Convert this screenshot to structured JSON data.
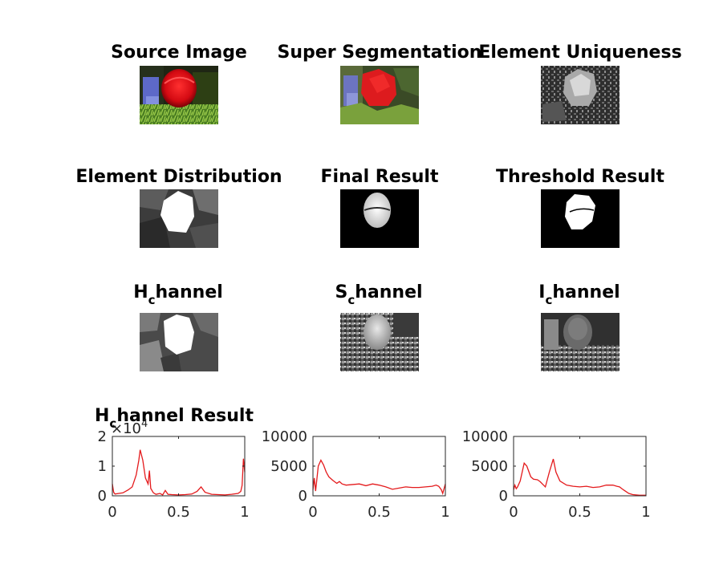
{
  "panels": [
    {
      "title": "Source Image"
    },
    {
      "title": "Super Segmentation"
    },
    {
      "title": "Element Uniqueness"
    },
    {
      "title": "Element Distribution"
    },
    {
      "title": "Final Result"
    },
    {
      "title": "Threshold Result"
    },
    {
      "title_main": "H",
      "title_sub": "c",
      "title_rest": "hannel"
    },
    {
      "title_main": "S",
      "title_sub": "c",
      "title_rest": "hannel"
    },
    {
      "title_main": "I",
      "title_sub": "c",
      "title_rest": "hannel"
    }
  ],
  "chart_data": [
    {
      "type": "line",
      "title": "H_channel Result",
      "title_main": "H",
      "title_sub": "c",
      "title_rest": "hannel Result",
      "exponent_label": "×10",
      "exponent_value": "4",
      "xlim": [
        0,
        1
      ],
      "ylim": [
        0,
        20000
      ],
      "xticks": [
        "0",
        "0.5",
        "1"
      ],
      "yticks": [
        "0",
        "1",
        "2"
      ],
      "line_color": "#e41a1c",
      "series": [
        {
          "x": [
            0,
            0.01,
            0.02,
            0.05,
            0.08,
            0.12,
            0.15,
            0.18,
            0.2,
            0.21,
            0.23,
            0.25,
            0.27,
            0.28,
            0.29,
            0.31,
            0.33,
            0.36,
            0.38,
            0.4,
            0.42,
            0.45,
            0.5,
            0.55,
            0.6,
            0.64,
            0.67,
            0.7,
            0.75,
            0.8,
            0.85,
            0.9,
            0.95,
            0.97,
            0.98,
            0.99,
            1.0
          ],
          "y": [
            4000,
            1200,
            600,
            800,
            1000,
            2000,
            3000,
            7000,
            12000,
            15500,
            12000,
            6000,
            4000,
            8500,
            2500,
            1000,
            500,
            800,
            300,
            1800,
            500,
            400,
            300,
            400,
            600,
            1500,
            3000,
            1200,
            500,
            400,
            300,
            500,
            800,
            1500,
            3500,
            12500,
            8000
          ]
        }
      ]
    },
    {
      "type": "line",
      "title": "",
      "xlim": [
        0,
        1
      ],
      "ylim": [
        0,
        10000
      ],
      "xticks": [
        "0",
        "0.5",
        "1"
      ],
      "yticks": [
        "0",
        "5000",
        "10000"
      ],
      "line_color": "#e41a1c",
      "series": [
        {
          "x": [
            0,
            0.01,
            0.02,
            0.04,
            0.06,
            0.08,
            0.1,
            0.12,
            0.15,
            0.18,
            0.2,
            0.22,
            0.25,
            0.3,
            0.35,
            0.4,
            0.45,
            0.5,
            0.55,
            0.6,
            0.65,
            0.7,
            0.75,
            0.8,
            0.85,
            0.9,
            0.93,
            0.95,
            0.97,
            0.98,
            1.0
          ],
          "y": [
            1000,
            3000,
            800,
            5000,
            6000,
            5200,
            4000,
            3200,
            2600,
            2100,
            2400,
            2000,
            1800,
            1900,
            2000,
            1700,
            2000,
            1800,
            1500,
            1100,
            1300,
            1500,
            1400,
            1400,
            1500,
            1600,
            1800,
            1600,
            1000,
            400,
            2000
          ]
        }
      ]
    },
    {
      "type": "line",
      "title": "",
      "xlim": [
        0,
        1
      ],
      "ylim": [
        0,
        10000
      ],
      "xticks": [
        "0",
        "0.5",
        "1"
      ],
      "yticks": [
        "0",
        "5000",
        "10000"
      ],
      "line_color": "#e41a1c",
      "series": [
        {
          "x": [
            0,
            0.01,
            0.02,
            0.03,
            0.05,
            0.08,
            0.1,
            0.13,
            0.15,
            0.18,
            0.2,
            0.24,
            0.27,
            0.3,
            0.32,
            0.35,
            0.4,
            0.45,
            0.5,
            0.55,
            0.6,
            0.65,
            0.7,
            0.75,
            0.78,
            0.8,
            0.83,
            0.87,
            0.9,
            0.95,
            1.0
          ],
          "y": [
            1000,
            1800,
            1200,
            1500,
            2500,
            5500,
            5000,
            3200,
            2800,
            2700,
            2400,
            1500,
            4000,
            6200,
            4000,
            2500,
            1800,
            1600,
            1500,
            1600,
            1400,
            1500,
            1800,
            1800,
            1600,
            1500,
            1000,
            400,
            200,
            100,
            100
          ]
        }
      ]
    }
  ]
}
